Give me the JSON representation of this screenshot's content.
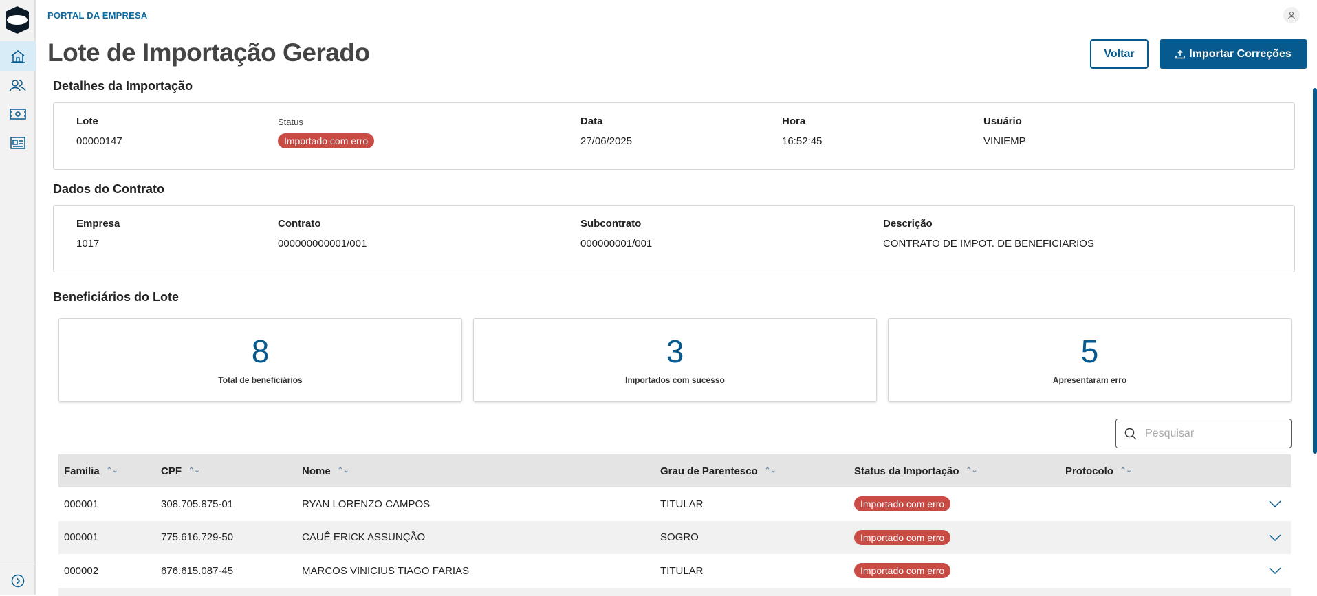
{
  "header": {
    "portal": "PORTAL DA EMPRESA",
    "title": "Lote de Importação Gerado",
    "back_label": "Voltar",
    "import_label": "Importar Correções"
  },
  "sidebar": {
    "items": [
      {
        "icon": "home-icon",
        "active": true
      },
      {
        "icon": "users-icon"
      },
      {
        "icon": "money-icon"
      },
      {
        "icon": "id-card-icon"
      }
    ],
    "expand_icon": "chevron-right-circle-icon"
  },
  "details": {
    "title": "Detalhes da Importação",
    "lote_label": "Lote",
    "lote": "00000147",
    "status_label": "Status",
    "status": "Importado com erro",
    "data_label": "Data",
    "data": "27/06/2025",
    "hora_label": "Hora",
    "hora": "16:52:45",
    "usuario_label": "Usuário",
    "usuario": "VINIEMP"
  },
  "contract": {
    "title": "Dados do Contrato",
    "empresa_label": "Empresa",
    "empresa": "1017",
    "contrato_label": "Contrato",
    "contrato": "000000000001/001",
    "subcontrato_label": "Subcontrato",
    "subcontrato": "000000001/001",
    "descricao_label": "Descrição",
    "descricao": "CONTRATO DE IMPOT. DE BENEFICIARIOS"
  },
  "beneficiaries": {
    "title": "Beneficiários do Lote",
    "stats": [
      {
        "value": "8",
        "label": "Total de beneficiários"
      },
      {
        "value": "3",
        "label": "Importados com sucesso"
      },
      {
        "value": "5",
        "label": "Apresentaram erro"
      }
    ],
    "search_placeholder": "Pesquisar",
    "columns": [
      "Família",
      "CPF",
      "Nome",
      "Grau de Parentesco",
      "Status da Importação",
      "Protocolo"
    ],
    "rows": [
      {
        "familia": "000001",
        "cpf": "308.705.875-01",
        "nome": "RYAN LORENZO CAMPOS",
        "grau": "TITULAR",
        "status": "Importado com erro",
        "protocolo": ""
      },
      {
        "familia": "000001",
        "cpf": "775.616.729-50",
        "nome": "CAUÊ ERICK ASSUNÇÃO",
        "grau": "SOGRO",
        "status": "Importado com erro",
        "protocolo": ""
      },
      {
        "familia": "000002",
        "cpf": "676.615.087-45",
        "nome": "MARCOS VINICIUS TIAGO FARIAS",
        "grau": "TITULAR",
        "status": "Importado com erro",
        "protocolo": ""
      }
    ]
  },
  "colors": {
    "primary": "#065a8e",
    "error_badge": "#c84b44",
    "sidebar_bg": "#f2f2f2",
    "active_nav": "#d8ecf8"
  }
}
